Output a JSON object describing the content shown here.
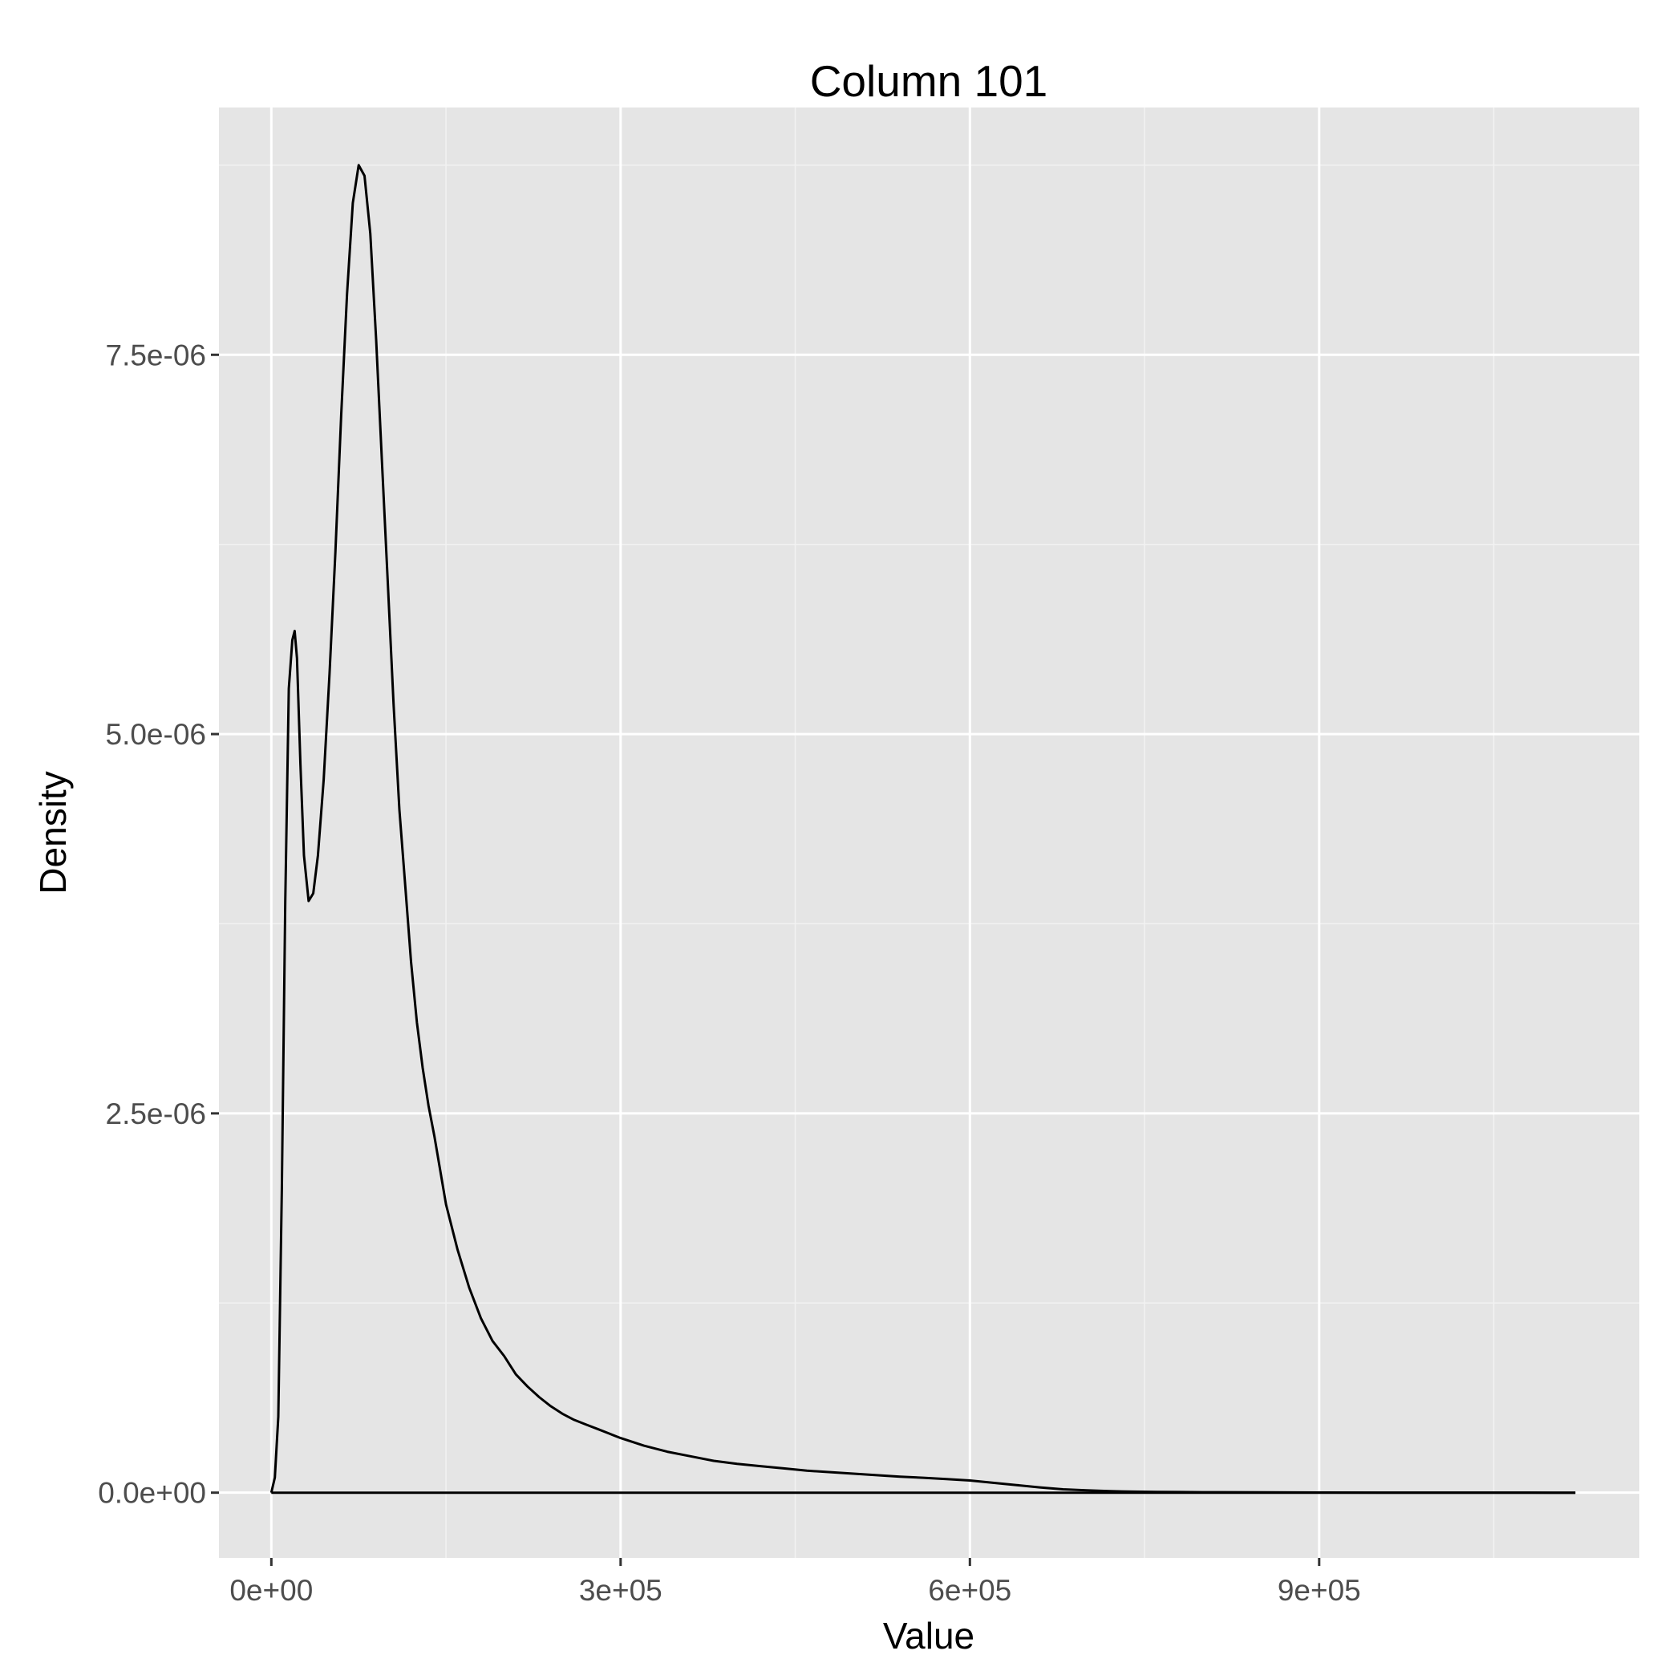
{
  "chart_data": {
    "type": "line",
    "title": "Column 101",
    "xlabel": "Value",
    "ylabel": "Density",
    "xlim": [
      -45000,
      1175000
    ],
    "ylim": [
      -4.3e-07,
      9.13e-06
    ],
    "x_ticks": [
      {
        "value": 0,
        "label": "0e+00"
      },
      {
        "value": 300000,
        "label": "3e+05"
      },
      {
        "value": 600000,
        "label": "6e+05"
      },
      {
        "value": 900000,
        "label": "9e+05"
      }
    ],
    "x_minor_ticks": [
      150000,
      450000,
      750000,
      1050000
    ],
    "y_ticks": [
      {
        "value": 0,
        "label": "0.0e+00"
      },
      {
        "value": 2.5e-06,
        "label": "2.5e-06"
      },
      {
        "value": 5e-06,
        "label": "5.0e-06"
      },
      {
        "value": 7.5e-06,
        "label": "7.5e-06"
      }
    ],
    "y_minor_ticks": [
      1.25e-06,
      3.75e-06,
      6.25e-06,
      8.75e-06
    ],
    "grid": true,
    "colors": {
      "panel": "#e5e5e5",
      "grid": "#ffffff",
      "line": "#000000",
      "tick_label": "#4d4d4d"
    },
    "series": [
      {
        "x": [
          0,
          3000,
          6000,
          9000,
          12000,
          15000,
          18000,
          20000,
          22000,
          25000,
          28000,
          32000,
          36000,
          40000,
          45000,
          50000,
          55000,
          60000,
          65000,
          70000,
          75000,
          80000,
          85000,
          90000,
          95000,
          100000,
          105000,
          110000,
          115000,
          120000,
          125000,
          130000,
          135000,
          140000,
          150000,
          160000,
          170000,
          180000,
          190000,
          200000,
          210000,
          220000,
          230000,
          240000,
          250000,
          260000,
          270000,
          280000,
          290000,
          300000,
          320000,
          340000,
          360000,
          380000,
          400000,
          420000,
          440000,
          460000,
          480000,
          500000,
          520000,
          540000,
          560000,
          580000,
          600000,
          620000,
          640000,
          660000,
          680000,
          700000,
          720000,
          740000,
          760000,
          780000,
          800000,
          850000,
          900000,
          950000,
          1000000,
          1050000,
          1100000,
          1120000
        ],
        "y": [
          0,
          1e-07,
          5e-07,
          2e-06,
          3.9e-06,
          5.3e-06,
          5.62e-06,
          5.68e-06,
          5.5e-06,
          4.8e-06,
          4.2e-06,
          3.9e-06,
          3.95e-06,
          4.2e-06,
          4.7e-06,
          5.4e-06,
          6.2e-06,
          7.1e-06,
          7.9e-06,
          8.5e-06,
          8.75e-06,
          8.68e-06,
          8.3e-06,
          7.6e-06,
          6.8e-06,
          6e-06,
          5.2e-06,
          4.5e-06,
          4e-06,
          3.5e-06,
          3.1e-06,
          2.8e-06,
          2.55e-06,
          2.35e-06,
          1.9e-06,
          1.6e-06,
          1.35e-06,
          1.15e-06,
          1e-06,
          9e-07,
          7.8e-07,
          7e-07,
          6.3e-07,
          5.7e-07,
          5.2e-07,
          4.8e-07,
          4.5e-07,
          4.2e-07,
          3.9e-07,
          3.6e-07,
          3.1e-07,
          2.7e-07,
          2.4e-07,
          2.1e-07,
          1.9e-07,
          1.75e-07,
          1.6e-07,
          1.45e-07,
          1.35e-07,
          1.25e-07,
          1.15e-07,
          1.05e-07,
          9.8e-08,
          9e-08,
          8e-08,
          6.5e-08,
          5e-08,
          3.5e-08,
          2.2e-08,
          1.5e-08,
          1e-08,
          7e-09,
          5e-09,
          4e-09,
          3e-09,
          2e-09,
          1e-09,
          5e-10,
          3e-10,
          2e-10,
          1e-10,
          0
        ]
      }
    ]
  }
}
